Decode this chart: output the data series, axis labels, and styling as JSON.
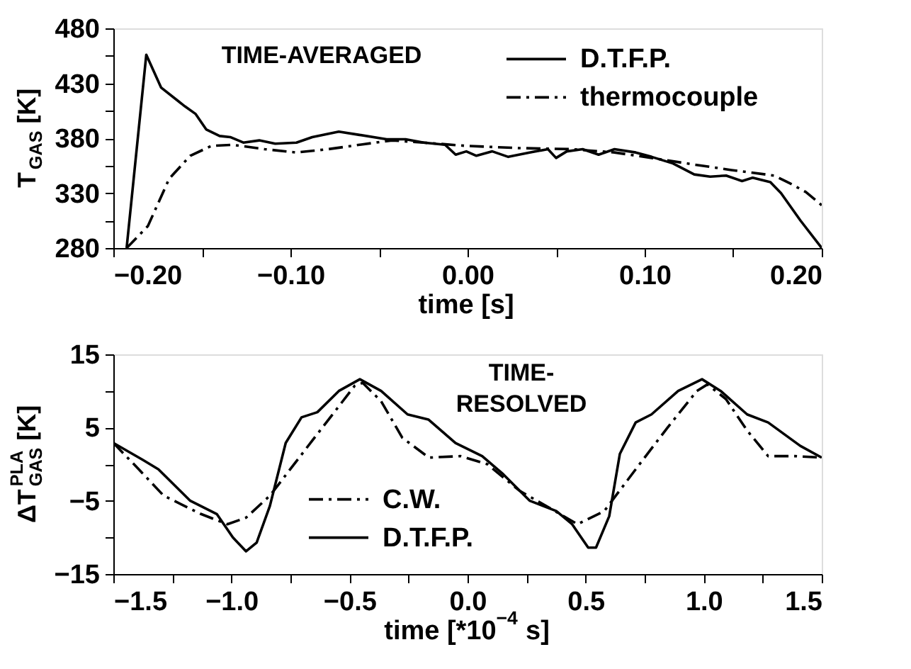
{
  "chart_data": [
    {
      "type": "line",
      "xlabel": "time [s]",
      "ylabel": "T$_{GAS}$ [K]",
      "annotations": [
        "TIME-AVERAGED"
      ],
      "legend": "top right",
      "grid": false,
      "marker": "none",
      "xlim": [
        -0.2,
        0.2
      ],
      "ylim": [
        280,
        480
      ],
      "xticks": [
        {
          "value": -0.2,
          "label": "−0.20"
        },
        {
          "value": -0.15,
          "label": null
        },
        {
          "value": -0.1,
          "label": "−0.10"
        },
        {
          "value": -0.05,
          "label": null
        },
        {
          "value": 0,
          "label": "0.00"
        },
        {
          "value": 0.05,
          "label": null
        },
        {
          "value": 0.1,
          "label": "0.10"
        },
        {
          "value": 0.15,
          "label": null
        },
        {
          "value": 0.2,
          "label": "0.20"
        }
      ],
      "yticks": [
        280,
        {
          "value": 305,
          "label": null
        },
        330,
        {
          "value": 355,
          "label": null
        },
        380,
        {
          "value": 405,
          "label": null
        },
        430,
        {
          "value": 455,
          "label": null
        },
        480
      ],
      "series": [
        {
          "name": "D.T.F.P.",
          "color": "#000000",
          "line_style": "solid",
          "x": [
            -0.1925,
            -0.1814,
            -0.173,
            -0.1596,
            -0.1535,
            -0.1476,
            -0.14,
            -0.134,
            -0.1266,
            -0.1176,
            -0.1086,
            -0.0966,
            -0.0877,
            -0.0727,
            -0.061,
            -0.0457,
            -0.035,
            -0.0247,
            -0.0127,
            -0.0067,
            -0.0007,
            0.005,
            0.014,
            0.023,
            0.035,
            0.0454,
            0.05,
            0.056,
            0.065,
            0.074,
            0.083,
            0.095,
            0.104,
            0.116,
            0.128,
            0.137,
            0.146,
            0.155,
            0.161,
            0.171,
            0.177,
            0.188,
            0.2
          ],
          "values": [
            280,
            456,
            426,
            409,
            402,
            388,
            382,
            381,
            376,
            378,
            375,
            376,
            381,
            386,
            383,
            379,
            379,
            376,
            374,
            365,
            368,
            364,
            368,
            363,
            367,
            370,
            362,
            368,
            370,
            365,
            370,
            367,
            363,
            357,
            347,
            345,
            346,
            341,
            344,
            340,
            330,
            305,
            280
          ]
        },
        {
          "name": "thermocouple",
          "color": "#000000",
          "line_style": "dashed",
          "x": [
            -0.1925,
            -0.1805,
            -0.1685,
            -0.1566,
            -0.1446,
            -0.1326,
            -0.1146,
            -0.0966,
            -0.0787,
            -0.061,
            -0.0427,
            -0.0247,
            -0.0007,
            0.029,
            0.059,
            0.083,
            0.104,
            0.128,
            0.149,
            0.173,
            0.182,
            0.191,
            0.2
          ],
          "values": [
            280,
            300,
            343,
            364,
            373,
            374,
            370,
            367,
            370,
            374,
            378,
            376,
            373,
            371,
            370,
            367,
            362,
            356,
            351,
            346,
            339,
            331,
            319
          ]
        }
      ]
    },
    {
      "type": "line",
      "xlabel": "time [*10$^{−4}$ s]",
      "ylabel": "ΔT$_{GAS}$$^{PLA}$ [K]",
      "annotations": [
        "TIME-\nRESOLVED"
      ],
      "legend": "bottom left",
      "grid": false,
      "marker": "none",
      "xlim": [
        -1.5,
        1.5
      ],
      "ylim": [
        -15,
        15
      ],
      "xticks": [
        -1.5,
        {
          "value": -1.25,
          "label": null
        },
        {
          "value": -1,
          "label": "−1.0"
        },
        {
          "value": -0.75,
          "label": null
        },
        -0.5,
        {
          "value": -0.25,
          "label": null
        },
        {
          "value": 0,
          "label": "0.0"
        },
        {
          "value": 0.25,
          "label": null
        },
        0.5,
        {
          "value": 0.75,
          "label": null
        },
        {
          "value": 1,
          "label": "1.0"
        },
        {
          "value": 1.25,
          "label": null
        },
        1.5
      ],
      "yticks": [
        -15,
        {
          "value": -10,
          "label": null
        },
        -5,
        {
          "value": 0,
          "label": null
        },
        5,
        {
          "value": 10,
          "label": null
        },
        15
      ],
      "series": [
        {
          "name": "C.W.",
          "color": "#000000",
          "line_style": "dashed",
          "x": [
            -1.5,
            -1.41,
            -1.287,
            -1.129,
            -1.017,
            -0.938,
            -0.837,
            -0.658,
            -0.478,
            -0.444,
            -0.366,
            -0.276,
            -0.164,
            -0.029,
            0.084,
            0.219,
            0.354,
            0.466,
            0.579,
            0.712,
            0.847,
            0.971,
            1.016,
            1.094,
            1.184,
            1.273,
            1.386,
            1.5
          ],
          "values": [
            2.9,
            -0.1,
            -4.3,
            -6.8,
            -8.2,
            -7.3,
            -4.3,
            3.2,
            10.7,
            11.1,
            8.6,
            3.6,
            0.9,
            1.1,
            0,
            -3.6,
            -6.1,
            -8.2,
            -6.4,
            -0.7,
            5,
            10,
            10.9,
            8.9,
            4.6,
            1.1,
            1.1,
            0.9
          ]
        },
        {
          "name": "D.T.F.P.",
          "color": "#000000",
          "line_style": "solid",
          "x": [
            -1.5,
            -1.376,
            -1.309,
            -1.174,
            -1.062,
            -0.994,
            -0.938,
            -0.893,
            -0.837,
            -0.77,
            -0.703,
            -0.636,
            -0.545,
            -0.456,
            -0.366,
            -0.254,
            -0.166,
            -0.051,
            0.062,
            0.152,
            0.264,
            0.376,
            0.443,
            0.511,
            0.544,
            0.6,
            0.645,
            0.712,
            0.779,
            0.892,
            0.993,
            1.072,
            1.184,
            1.273,
            1.409,
            1.5
          ],
          "values": [
            2.9,
            0.6,
            -0.7,
            -5,
            -6.8,
            -10,
            -11.9,
            -10.7,
            -5.7,
            2.9,
            6.4,
            7.1,
            10,
            11.6,
            10,
            6.8,
            6.1,
            2.9,
            1.1,
            -1.4,
            -5,
            -6.4,
            -8.2,
            -11.4,
            -11.4,
            -7.1,
            1.4,
            5.7,
            6.8,
            10,
            11.6,
            10,
            6.8,
            5.7,
            2.5,
            0.9
          ]
        }
      ]
    }
  ]
}
